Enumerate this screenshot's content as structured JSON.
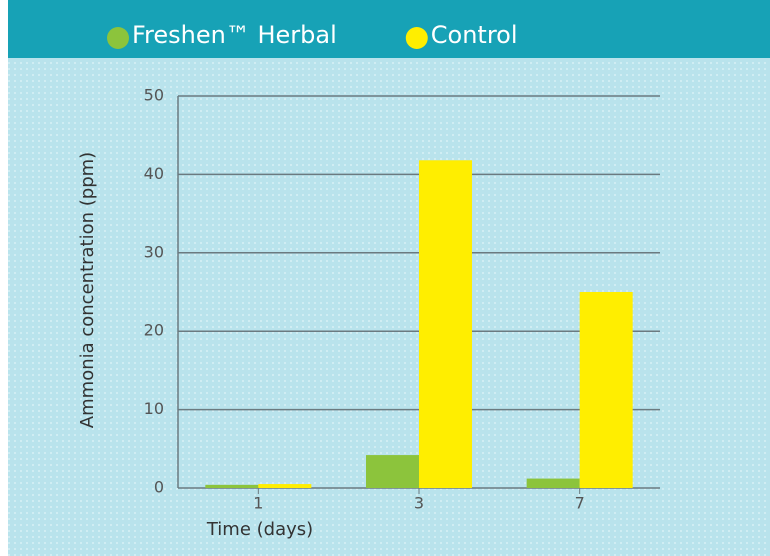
{
  "chart_data": {
    "type": "bar",
    "categories": [
      "1",
      "3",
      "7"
    ],
    "series": [
      {
        "name": "Freshen™ Herbal",
        "color": "#8cc43c",
        "values": [
          0.4,
          4.2,
          1.2
        ]
      },
      {
        "name": "Control",
        "color": "#ffee00",
        "values": [
          0.5,
          41.8,
          25
        ]
      }
    ],
    "xlabel": "Time (days)",
    "ylabel": "Ammonia concentration (ppm)",
    "ylim": [
      0,
      50
    ],
    "yticks": [
      0,
      10,
      20,
      30,
      40,
      50
    ],
    "grid": true,
    "legend": "top"
  }
}
